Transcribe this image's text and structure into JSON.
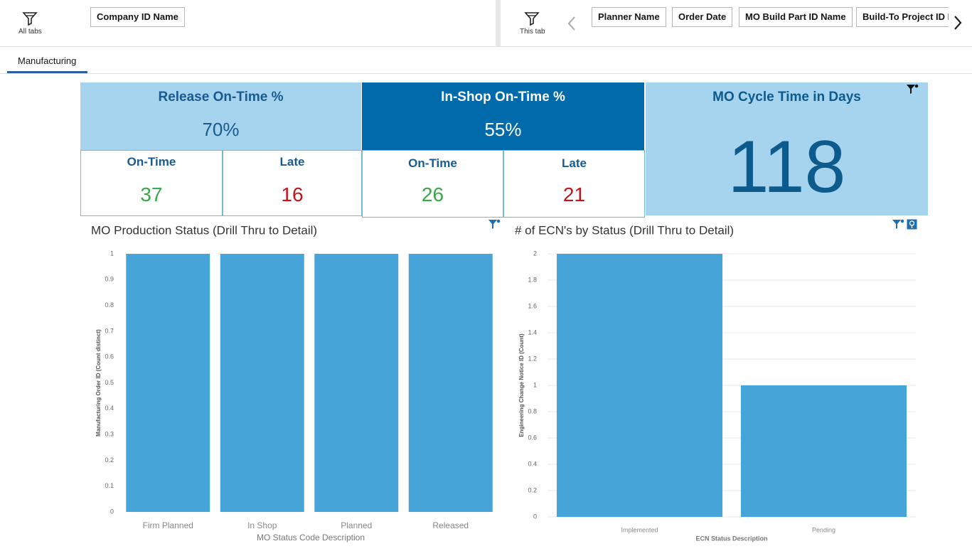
{
  "toolbar": {
    "all_tabs": "All tabs",
    "this_tab": "This tab",
    "filters_left": [
      "Company ID Name"
    ],
    "filters_right": [
      "Planner Name",
      "Order Date",
      "MO Build Part ID Name",
      "Build-To Project ID N"
    ]
  },
  "tab": "Manufacturing",
  "kpis": {
    "release": {
      "title": "Release On-Time %",
      "value": "70%",
      "on_time_label": "On-Time",
      "on_time": 37,
      "late_label": "Late",
      "late": 16
    },
    "in_shop": {
      "title": "In-Shop On-Time %",
      "value": "55%",
      "on_time_label": "On-Time",
      "on_time": 26,
      "late_label": "Late",
      "late": 21
    },
    "cycle": {
      "title": "MO Cycle Time in Days",
      "value": 118
    }
  },
  "chart_data": [
    {
      "type": "bar",
      "title": "MO Production Status (Drill Thru to Detail)",
      "x_label": "MO Status Code Description",
      "y_label": "Manufacturing Order ID (Count distinct)",
      "categories": [
        "Firm Planned",
        "In Shop",
        "Planned",
        "Released"
      ],
      "values": [
        1,
        1,
        1,
        1
      ],
      "color": "#46a4d8",
      "ylim": [
        0,
        1
      ],
      "yticks": [
        0,
        0.1,
        0.2,
        0.3,
        0.4,
        0.5,
        0.6,
        0.7,
        0.8,
        0.9,
        1
      ],
      "grid": false
    },
    {
      "type": "bar",
      "title": "# of ECN's by Status (Drill Thru to Detail)",
      "x_label": "ECN Status Description",
      "y_label": "Engineering Change Notice ID (Count)",
      "categories": [
        "Implemented",
        "Pending"
      ],
      "values": [
        2,
        1
      ],
      "color": "#46a4d8",
      "ylim": [
        0,
        2
      ],
      "yticks": [
        0,
        0.2,
        0.4,
        0.6,
        0.8,
        1,
        1.2,
        1.4,
        1.6,
        1.8,
        2
      ],
      "grid": true
    }
  ]
}
